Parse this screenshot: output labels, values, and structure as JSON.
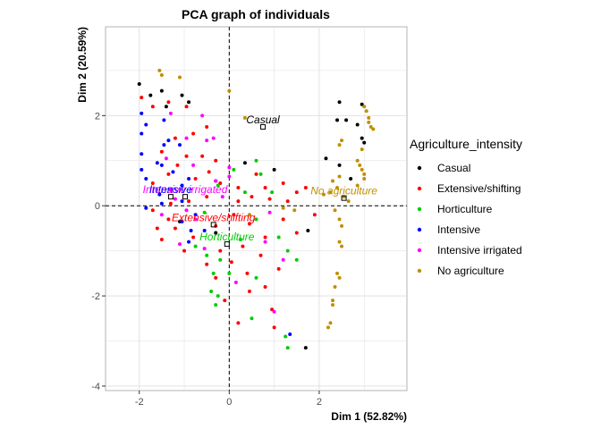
{
  "chart_data": {
    "type": "scatter",
    "title": "PCA graph of individuals",
    "xlabel": "Dim 1 (52.82%)",
    "ylabel": "Dim 2 (20.59%)",
    "xlim": [
      -2.75,
      3.95
    ],
    "ylim": [
      -4.1,
      3.97
    ],
    "xticks": [
      -2,
      0,
      2
    ],
    "yticks": [
      -4,
      -2,
      0,
      2
    ],
    "grid": true,
    "reference_lines": {
      "x": 0,
      "y": 0,
      "style": "dashed"
    },
    "legend": {
      "title": "Agriculture_intensity",
      "position": "right"
    },
    "series": [
      {
        "name": "Casual",
        "color": "#000000",
        "points": [
          [
            -2.0,
            2.7
          ],
          [
            -1.5,
            2.55
          ],
          [
            -1.05,
            2.45
          ],
          [
            -0.9,
            2.3
          ],
          [
            -1.75,
            2.45
          ],
          [
            -1.4,
            2.2
          ],
          [
            2.45,
            2.3
          ],
          [
            2.95,
            2.25
          ],
          [
            2.4,
            1.9
          ],
          [
            2.6,
            1.9
          ],
          [
            2.85,
            1.8
          ],
          [
            2.95,
            1.5
          ],
          [
            3.0,
            1.4
          ],
          [
            2.15,
            1.05
          ],
          [
            2.45,
            0.9
          ],
          [
            2.7,
            0.6
          ],
          [
            -0.3,
            0.55
          ],
          [
            0.35,
            0.95
          ],
          [
            1.0,
            0.8
          ],
          [
            -1.1,
            -0.35
          ],
          [
            -0.3,
            -0.6
          ],
          [
            1.75,
            -0.55
          ],
          [
            1.7,
            -3.15
          ]
        ]
      },
      {
        "name": "Extensive/shifting",
        "color": "#ff0000",
        "points": [
          [
            -1.95,
            2.4
          ],
          [
            -1.7,
            2.2
          ],
          [
            -1.35,
            2.3
          ],
          [
            -0.95,
            2.2
          ],
          [
            -0.5,
            1.75
          ],
          [
            -0.8,
            1.6
          ],
          [
            -1.2,
            1.5
          ],
          [
            -1.5,
            1.2
          ],
          [
            -0.95,
            1.1
          ],
          [
            -0.6,
            1.1
          ],
          [
            -0.3,
            1.0
          ],
          [
            -1.15,
            0.9
          ],
          [
            -0.45,
            0.75
          ],
          [
            -0.75,
            0.6
          ],
          [
            -1.35,
            0.7
          ],
          [
            -1.7,
            0.5
          ],
          [
            -0.2,
            0.5
          ],
          [
            0.2,
            0.4
          ],
          [
            0.6,
            0.7
          ],
          [
            0.8,
            0.4
          ],
          [
            1.2,
            0.5
          ],
          [
            1.5,
            0.3
          ],
          [
            1.7,
            0.4
          ],
          [
            0.2,
            0.1
          ],
          [
            0.5,
            0.2
          ],
          [
            0.9,
            0.15
          ],
          [
            1.3,
            0.1
          ],
          [
            -0.5,
            0.2
          ],
          [
            -0.9,
            0.1
          ],
          [
            -1.3,
            0.05
          ],
          [
            -1.7,
            -0.1
          ],
          [
            -1.35,
            -0.3
          ],
          [
            -1.6,
            -0.5
          ],
          [
            -1.2,
            -0.5
          ],
          [
            -0.8,
            -0.7
          ],
          [
            -0.3,
            -0.45
          ],
          [
            0.1,
            -0.2
          ],
          [
            0.45,
            -0.4
          ],
          [
            0.8,
            -0.7
          ],
          [
            1.2,
            -0.3
          ],
          [
            1.5,
            -0.6
          ],
          [
            1.9,
            -0.2
          ],
          [
            0.3,
            -0.9
          ],
          [
            0.7,
            -1.1
          ],
          [
            1.1,
            -1.4
          ],
          [
            0.4,
            -1.5
          ],
          [
            0.8,
            -1.8
          ],
          [
            -0.5,
            -1.3
          ],
          [
            -0.2,
            -1.0
          ],
          [
            -0.1,
            -2.1
          ],
          [
            0.2,
            -2.6
          ],
          [
            0.45,
            -1.9
          ],
          [
            0.95,
            -2.3
          ],
          [
            1.0,
            -2.7
          ],
          [
            -1.5,
            -0.75
          ],
          [
            -1.0,
            -1.0
          ],
          [
            -0.3,
            -1.6
          ],
          [
            0.05,
            -1.25
          ]
        ]
      },
      {
        "name": "Horticulture",
        "color": "#00cc00",
        "points": [
          [
            0.6,
            1.0
          ],
          [
            0.7,
            0.7
          ],
          [
            0.1,
            0.8
          ],
          [
            -0.25,
            0.45
          ],
          [
            0.35,
            0.3
          ],
          [
            -0.55,
            -0.15
          ],
          [
            -0.75,
            -0.9
          ],
          [
            -0.5,
            -1.1
          ],
          [
            -0.2,
            -1.2
          ],
          [
            0.25,
            -0.75
          ],
          [
            0.6,
            -0.3
          ],
          [
            0.95,
            0.3
          ],
          [
            1.1,
            -0.7
          ],
          [
            1.3,
            -1.0
          ],
          [
            1.5,
            -1.2
          ],
          [
            -0.4,
            -1.9
          ],
          [
            -0.25,
            -2.0
          ],
          [
            -0.3,
            -2.2
          ],
          [
            0.0,
            -1.5
          ],
          [
            0.6,
            -1.6
          ],
          [
            0.5,
            -2.5
          ],
          [
            1.25,
            -2.9
          ],
          [
            1.3,
            -3.15
          ],
          [
            -0.35,
            -1.5
          ]
        ]
      },
      {
        "name": "Intensive",
        "color": "#0000ff",
        "points": [
          [
            -1.95,
            2.05
          ],
          [
            -1.95,
            1.6
          ],
          [
            -1.85,
            1.8
          ],
          [
            -1.45,
            1.9
          ],
          [
            -1.35,
            1.45
          ],
          [
            -1.45,
            1.35
          ],
          [
            -1.1,
            1.35
          ],
          [
            -1.95,
            1.15
          ],
          [
            -1.6,
            0.95
          ],
          [
            -1.95,
            0.8
          ],
          [
            -1.5,
            0.9
          ],
          [
            -1.85,
            0.6
          ],
          [
            -1.25,
            0.75
          ],
          [
            -1.05,
            0.45
          ],
          [
            -0.9,
            0.6
          ],
          [
            -1.55,
            0.25
          ],
          [
            -1.05,
            0.1
          ],
          [
            -1.5,
            0.05
          ],
          [
            -1.85,
            -0.05
          ],
          [
            -1.05,
            -0.35
          ],
          [
            -0.75,
            -0.2
          ],
          [
            -0.55,
            -0.55
          ],
          [
            -0.9,
            -0.8
          ],
          [
            -0.85,
            -0.55
          ],
          [
            1.35,
            -2.85
          ]
        ]
      },
      {
        "name": "Intensive irrigated",
        "color": "#ff00ff",
        "points": [
          [
            -1.3,
            2.05
          ],
          [
            -0.95,
            1.5
          ],
          [
            -0.6,
            2.0
          ],
          [
            -0.5,
            1.45
          ],
          [
            -0.35,
            1.5
          ],
          [
            -1.4,
            1.05
          ],
          [
            -0.8,
            0.9
          ],
          [
            -0.3,
            0.55
          ],
          [
            0.0,
            0.65
          ],
          [
            -0.15,
            0.2
          ],
          [
            -1.3,
            0.35
          ],
          [
            -1.2,
            0.15
          ],
          [
            -0.95,
            -0.1
          ],
          [
            -0.75,
            -0.3
          ],
          [
            0.0,
            0.85
          ],
          [
            0.8,
            -0.8
          ],
          [
            -1.1,
            -0.85
          ],
          [
            -0.55,
            -0.95
          ],
          [
            0.15,
            -1.7
          ],
          [
            0.9,
            -0.15
          ],
          [
            1.2,
            -1.2
          ],
          [
            1.0,
            -2.35
          ],
          [
            -1.5,
            -0.2
          ]
        ]
      },
      {
        "name": "No agriculture",
        "color": "#bf8f00",
        "points": [
          [
            -1.55,
            3.0
          ],
          [
            -1.5,
            2.9
          ],
          [
            -1.1,
            2.85
          ],
          [
            0.0,
            2.55
          ],
          [
            0.35,
            1.95
          ],
          [
            3.0,
            2.2
          ],
          [
            3.05,
            2.1
          ],
          [
            3.1,
            1.85
          ],
          [
            3.15,
            1.75
          ],
          [
            3.2,
            1.7
          ],
          [
            3.1,
            1.95
          ],
          [
            2.5,
            1.45
          ],
          [
            2.45,
            1.35
          ],
          [
            2.95,
            1.25
          ],
          [
            2.85,
            1.0
          ],
          [
            2.9,
            0.9
          ],
          [
            2.95,
            0.8
          ],
          [
            3.0,
            0.7
          ],
          [
            3.0,
            0.6
          ],
          [
            2.85,
            0.45
          ],
          [
            2.45,
            0.65
          ],
          [
            2.3,
            0.55
          ],
          [
            2.4,
            0.4
          ],
          [
            2.25,
            0.3
          ],
          [
            2.1,
            0.25
          ],
          [
            2.55,
            0.2
          ],
          [
            2.65,
            0.1
          ],
          [
            2.35,
            -0.1
          ],
          [
            2.45,
            -0.3
          ],
          [
            2.5,
            -0.45
          ],
          [
            2.45,
            -0.8
          ],
          [
            2.5,
            -0.9
          ],
          [
            2.4,
            -1.5
          ],
          [
            2.45,
            -1.6
          ],
          [
            2.35,
            -1.8
          ],
          [
            2.3,
            -2.1
          ],
          [
            2.3,
            -2.2
          ],
          [
            2.25,
            -2.6
          ],
          [
            2.2,
            -2.7
          ],
          [
            1.2,
            -0.05
          ],
          [
            1.45,
            -0.1
          ],
          [
            0.45,
            -0.2
          ]
        ]
      }
    ],
    "centroids": [
      {
        "name": "Casual",
        "x": 0.75,
        "y": 1.75,
        "color": "#000000"
      },
      {
        "name": "No agriculture",
        "x": 2.55,
        "y": 0.17,
        "color": "#bf8f00"
      },
      {
        "name": "Intensive irrigated",
        "x": -0.98,
        "y": 0.2,
        "color": "#ff00ff"
      },
      {
        "name": "Intensive",
        "x": -1.3,
        "y": 0.2,
        "color": "#0000ff"
      },
      {
        "name": "Extensive/shifting",
        "x": -0.35,
        "y": -0.42,
        "color": "#ff0000"
      },
      {
        "name": "Horticulture",
        "x": -0.05,
        "y": -0.85,
        "color": "#00cc00"
      }
    ]
  }
}
